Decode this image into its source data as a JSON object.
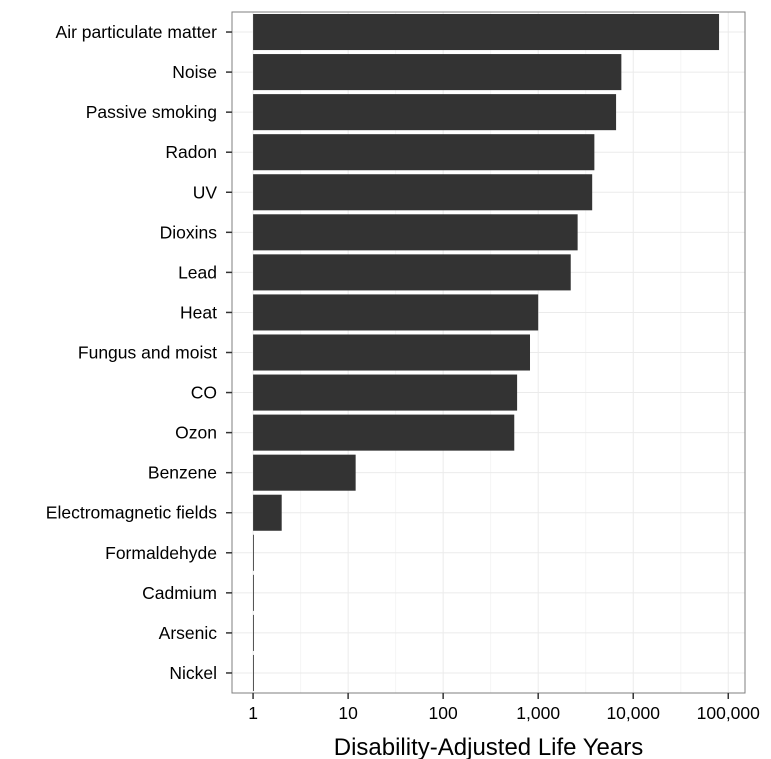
{
  "chart_data": {
    "type": "bar",
    "orientation": "horizontal",
    "xscale": "log10",
    "xlabel": "Disability-Adjusted Life Years",
    "ylabel": "",
    "title": "",
    "grid": true,
    "legend": "none",
    "xlim": [
      0.6,
      150000
    ],
    "xticks": [
      1,
      10,
      100,
      1000,
      10000,
      100000
    ],
    "xtick_labels": [
      "1",
      "10",
      "100",
      "1,000",
      "10,000",
      "100,000"
    ],
    "categories": [
      "Air particulate matter",
      "Noise",
      "Passive smoking",
      "Radon",
      "UV",
      "Dioxins",
      "Lead",
      "Heat",
      "Fungus and moist",
      "CO",
      "Ozon",
      "Benzene",
      "Electromagnetic fields",
      "Formaldehyde",
      "Cadmium",
      "Arsenic",
      "Nickel"
    ],
    "values": [
      80000,
      7500,
      6600,
      3900,
      3700,
      2600,
      2200,
      1000,
      820,
      600,
      560,
      12,
      2,
      1.02,
      1.02,
      1.02,
      1.02
    ],
    "colors": {
      "bar": "#333333",
      "panel_border": "#7f7f7f",
      "grid_major": "#ebebeb",
      "grid_minor": "#f5f5f5",
      "text": "#000000"
    }
  }
}
